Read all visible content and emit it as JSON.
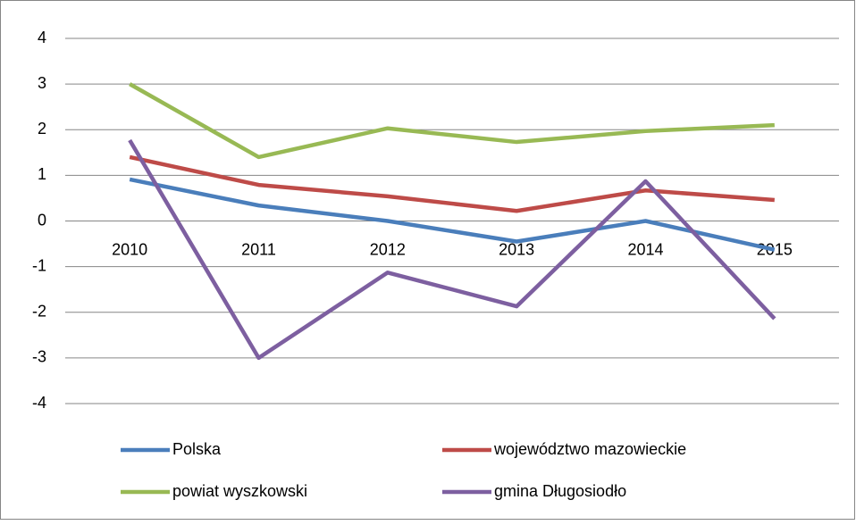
{
  "chart_data": {
    "type": "line",
    "categories": [
      "2010",
      "2011",
      "2012",
      "2013",
      "2014",
      "2015"
    ],
    "series": [
      {
        "name": "Polska",
        "color": "#4a7ebb",
        "values": [
          0.91,
          0.34,
          0.0,
          -0.45,
          0.0,
          -0.63
        ]
      },
      {
        "name": "województwo mazowieckie",
        "color": "#be4b48",
        "values": [
          1.4,
          0.79,
          0.54,
          0.22,
          0.67,
          0.46
        ]
      },
      {
        "name": "powiat wyszkowski",
        "color": "#98b954",
        "values": [
          3.0,
          1.4,
          2.03,
          1.73,
          1.97,
          2.1
        ]
      },
      {
        "name": "gmina Długosiodło",
        "color": "#7d5fa0",
        "values": [
          1.77,
          -3.0,
          -1.13,
          -1.87,
          0.87,
          -2.14
        ]
      }
    ],
    "ylim": [
      -4,
      4
    ],
    "yticks": [
      -4,
      -3,
      -2,
      -1,
      0,
      1,
      2,
      3,
      4
    ],
    "grid": true,
    "legend": "bottom"
  }
}
